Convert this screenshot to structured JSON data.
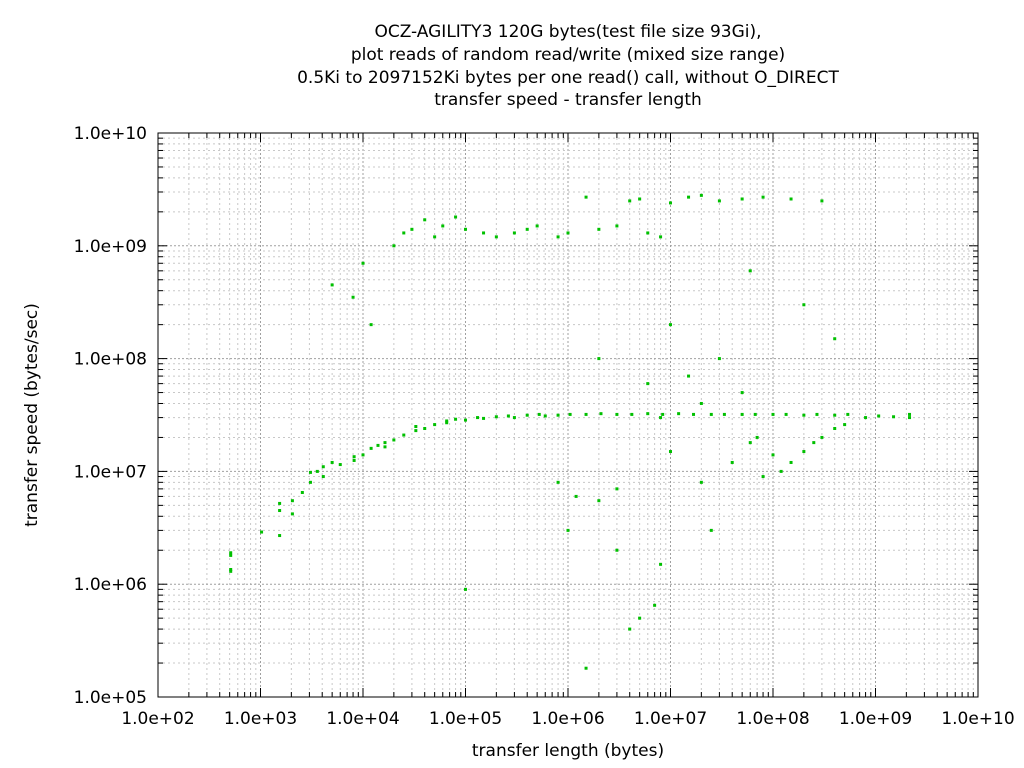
{
  "chart_data": {
    "type": "scatter",
    "title_lines": [
      "OCZ-AGILITY3 120G bytes(test file size 93Gi),",
      "plot reads of random read/write (mixed size range)",
      "0.5Ki to 2097152Ki bytes per one read() call, without O_DIRECT",
      "transfer speed - transfer length"
    ],
    "xlabel": "transfer length (bytes)",
    "ylabel": "transfer speed (bytes/sec)",
    "x_scale": "log",
    "y_scale": "log",
    "xlim": [
      100,
      10000000000
    ],
    "ylim": [
      100000,
      10000000000
    ],
    "x_tick_labels": [
      "1.0e+02",
      "1.0e+03",
      "1.0e+04",
      "1.0e+05",
      "1.0e+06",
      "1.0e+07",
      "1.0e+08",
      "1.0e+09",
      "1.0e+10"
    ],
    "y_tick_labels": [
      "1.0e+05",
      "1.0e+06",
      "1.0e+07",
      "1.0e+08",
      "1.0e+09",
      "1.0e+10"
    ],
    "grid": true,
    "legend": "none",
    "point_color": "#00c000",
    "points": [
      [
        512,
        1900000
      ],
      [
        512,
        1800000
      ],
      [
        512,
        1350000
      ],
      [
        512,
        1300000
      ],
      [
        1024,
        2900000
      ],
      [
        1536,
        2700000
      ],
      [
        1536,
        4500000
      ],
      [
        1536,
        5200000
      ],
      [
        2048,
        4200000
      ],
      [
        2048,
        5500000
      ],
      [
        2560,
        6500000
      ],
      [
        3072,
        8000000
      ],
      [
        3072,
        9800000
      ],
      [
        3584,
        10000000
      ],
      [
        4096,
        9000000
      ],
      [
        4096,
        11000000
      ],
      [
        5000,
        12000000
      ],
      [
        6000,
        11500000
      ],
      [
        8192,
        13500000
      ],
      [
        8192,
        12500000
      ],
      [
        10000,
        14000000
      ],
      [
        12000,
        16000000
      ],
      [
        14000,
        17000000
      ],
      [
        16384,
        18000000
      ],
      [
        16384,
        16500000
      ],
      [
        20000,
        19000000
      ],
      [
        25000,
        21000000
      ],
      [
        32768,
        23000000
      ],
      [
        32768,
        25000000
      ],
      [
        40000,
        24000000
      ],
      [
        50000,
        26000000
      ],
      [
        65536,
        28000000
      ],
      [
        65536,
        27000000
      ],
      [
        80000,
        29000000
      ],
      [
        100000,
        28500000
      ],
      [
        131072,
        30000000
      ],
      [
        150000,
        29500000
      ],
      [
        200000,
        30500000
      ],
      [
        262144,
        31000000
      ],
      [
        300000,
        30000000
      ],
      [
        400000,
        31500000
      ],
      [
        524288,
        32000000
      ],
      [
        600000,
        31000000
      ],
      [
        800000,
        31500000
      ],
      [
        1048576,
        32000000
      ],
      [
        1500000,
        32000000
      ],
      [
        2097152,
        32500000
      ],
      [
        3000000,
        32000000
      ],
      [
        4194304,
        32000000
      ],
      [
        6000000,
        32500000
      ],
      [
        8388608,
        32000000
      ],
      [
        12000000,
        32500000
      ],
      [
        16777216,
        32000000
      ],
      [
        25000000,
        32000000
      ],
      [
        33554432,
        32000000
      ],
      [
        50000000,
        32000000
      ],
      [
        67108864,
        32000000
      ],
      [
        100000000,
        32000000
      ],
      [
        134217728,
        32000000
      ],
      [
        200000000,
        31500000
      ],
      [
        268435456,
        32000000
      ],
      [
        400000000,
        31500000
      ],
      [
        536870912,
        32000000
      ],
      [
        800000000,
        30000000
      ],
      [
        1073741824,
        31000000
      ],
      [
        1500000000,
        30500000
      ],
      [
        2147483648,
        30000000
      ],
      [
        2147483648,
        32000000
      ],
      [
        20000,
        1000000000
      ],
      [
        25000,
        1300000000
      ],
      [
        30000,
        1400000000
      ],
      [
        40000,
        1700000000
      ],
      [
        50000,
        1200000000
      ],
      [
        60000,
        1500000000
      ],
      [
        80000,
        1800000000
      ],
      [
        100000,
        1400000000
      ],
      [
        150000,
        1300000000
      ],
      [
        200000,
        1200000000
      ],
      [
        300000,
        1300000000
      ],
      [
        400000,
        1400000000
      ],
      [
        500000,
        1500000000
      ],
      [
        800000,
        1200000000
      ],
      [
        1000000,
        1300000000
      ],
      [
        1500000,
        2700000000
      ],
      [
        2000000,
        1400000000
      ],
      [
        3000000,
        1500000000
      ],
      [
        4000000,
        2500000000
      ],
      [
        5000000,
        2600000000
      ],
      [
        6000000,
        1300000000
      ],
      [
        8000000,
        1200000000
      ],
      [
        10000000,
        2400000000
      ],
      [
        15000000,
        2700000000
      ],
      [
        20000000,
        2800000000
      ],
      [
        30000000,
        2500000000
      ],
      [
        50000000,
        2600000000
      ],
      [
        80000000,
        2700000000
      ],
      [
        150000000,
        2600000000
      ],
      [
        300000000,
        2500000000
      ],
      [
        10000,
        700000000
      ],
      [
        8000,
        350000000
      ],
      [
        5000,
        450000000
      ],
      [
        12000,
        200000000
      ],
      [
        3000000,
        7000000
      ],
      [
        2000000,
        5500000
      ],
      [
        1200000,
        6000000
      ],
      [
        6000000,
        60000000
      ],
      [
        8000000,
        30000000
      ],
      [
        10000000,
        15000000
      ],
      [
        15000000,
        70000000
      ],
      [
        20000000,
        8000000
      ],
      [
        25000000,
        3000000
      ],
      [
        40000000,
        12000000
      ],
      [
        60000000,
        18000000
      ],
      [
        80000000,
        9000000
      ],
      [
        100000000,
        14000000
      ],
      [
        120000000,
        10000000
      ],
      [
        150000000,
        12000000
      ],
      [
        200000000,
        15000000
      ],
      [
        250000000,
        18000000
      ],
      [
        300000000,
        20000000
      ],
      [
        400000000,
        24000000
      ],
      [
        500000000,
        26000000
      ],
      [
        4000000,
        400000
      ],
      [
        5000000,
        500000
      ],
      [
        7000000,
        650000
      ],
      [
        8000000,
        1500000
      ],
      [
        1500000,
        180000
      ],
      [
        3000000,
        2000000
      ],
      [
        60000000,
        600000000
      ],
      [
        200000000,
        300000000
      ],
      [
        400000000,
        150000000
      ],
      [
        10000000,
        200000000
      ],
      [
        30000000,
        100000000
      ],
      [
        50000000,
        50000000
      ],
      [
        2000000,
        100000000
      ],
      [
        1000000,
        3000000
      ],
      [
        100000,
        900000
      ],
      [
        800000,
        8000000
      ],
      [
        20000000,
        40000000
      ],
      [
        70000000,
        20000000
      ]
    ]
  }
}
